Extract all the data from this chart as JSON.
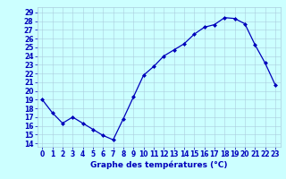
{
  "hours": [
    0,
    1,
    2,
    3,
    4,
    5,
    6,
    7,
    8,
    9,
    10,
    11,
    12,
    13,
    14,
    15,
    16,
    17,
    18,
    19,
    20,
    21,
    22,
    23
  ],
  "temps": [
    19.0,
    17.5,
    16.3,
    17.0,
    16.3,
    15.6,
    14.9,
    14.4,
    16.8,
    19.3,
    21.8,
    22.8,
    24.0,
    24.7,
    25.4,
    26.5,
    27.3,
    27.6,
    28.4,
    28.3,
    27.7,
    25.3,
    23.2,
    20.7
  ],
  "line_color": "#0000bb",
  "marker": "D",
  "marker_size": 2.0,
  "bg_color": "#ccffff",
  "grid_color": "#aaccdd",
  "xlabel": "Graphe des températures (°C)",
  "ylabel_ticks": [
    14,
    15,
    16,
    17,
    18,
    19,
    20,
    21,
    22,
    23,
    24,
    25,
    26,
    27,
    28,
    29
  ],
  "ylim": [
    13.6,
    29.6
  ],
  "xlim": [
    -0.5,
    23.5
  ],
  "tick_label_color": "#0000bb",
  "axis_label_color": "#0000bb",
  "tick_fontsize": 5.5,
  "xlabel_fontsize": 6.5
}
